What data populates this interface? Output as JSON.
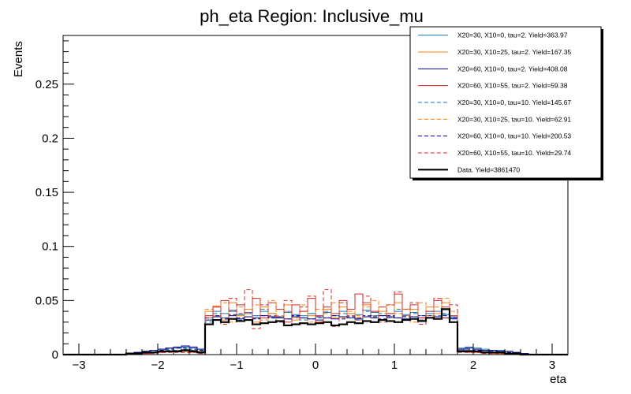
{
  "chart_data": {
    "type": "line",
    "title": "ph_eta Region: Inclusive_mu",
    "xlabel": "eta",
    "ylabel": "Events",
    "xlim": [
      -3.2,
      3.2
    ],
    "ylim": [
      0,
      0.295
    ],
    "x_ticks": [
      -3,
      -2,
      -1,
      0,
      1,
      2,
      3
    ],
    "x_tick_labels": [
      "−3",
      "−2",
      "−1",
      "0",
      "1",
      "2",
      "3"
    ],
    "y_ticks": [
      0,
      0.05,
      0.1,
      0.15,
      0.2,
      0.25
    ],
    "y_tick_labels": [
      "0",
      "0.05",
      "0.1",
      "0.15",
      "0.2",
      "0.25"
    ],
    "grid": false,
    "legend_position": "top-right",
    "bins": {
      "start": -3.2,
      "width": 0.1,
      "count": 64
    },
    "series": [
      {
        "name": "X20=30, X10=0, tau=2. Yield=363.97",
        "color": "#1f77b4",
        "dash": "solid",
        "values": [
          0,
          0,
          0,
          0,
          0,
          0,
          0,
          0,
          0.001,
          0.002,
          0.003,
          0.004,
          0.005,
          0.006,
          0.006,
          0.007,
          0.006,
          0.005,
          0.036,
          0.04,
          0.038,
          0.041,
          0.037,
          0.039,
          0.036,
          0.04,
          0.038,
          0.035,
          0.039,
          0.037,
          0.036,
          0.038,
          0.035,
          0.039,
          0.036,
          0.04,
          0.038,
          0.037,
          0.041,
          0.039,
          0.036,
          0.038,
          0.04,
          0.037,
          0.039,
          0.036,
          0.038,
          0.04,
          0.037,
          0.035,
          0.006,
          0.007,
          0.006,
          0.005,
          0.004,
          0.004,
          0.003,
          0.002,
          0.001,
          0,
          0,
          0,
          0,
          0
        ]
      },
      {
        "name": "X20=30, X10=25, tau=2. Yield=167.35",
        "color": "#ff7f0e",
        "dash": "solid",
        "values": [
          0,
          0,
          0,
          0,
          0,
          0,
          0,
          0,
          0,
          0.001,
          0.002,
          0.002,
          0.003,
          0.003,
          0.004,
          0.004,
          0.004,
          0.003,
          0.04,
          0.045,
          0.032,
          0.048,
          0.036,
          0.042,
          0.03,
          0.044,
          0.038,
          0.034,
          0.046,
          0.032,
          0.04,
          0.036,
          0.03,
          0.042,
          0.034,
          0.044,
          0.038,
          0.032,
          0.046,
          0.036,
          0.04,
          0.034,
          0.048,
          0.036,
          0.042,
          0.032,
          0.044,
          0.038,
          0.048,
          0.03,
          0.004,
          0.004,
          0.003,
          0.003,
          0.002,
          0.002,
          0.001,
          0.001,
          0,
          0,
          0,
          0,
          0,
          0
        ]
      },
      {
        "name": "X20=60, X10=0, tau=2. Yield=408.08",
        "color": "#000080",
        "dash": "solid",
        "values": [
          0,
          0,
          0,
          0,
          0,
          0,
          0,
          0,
          0.001,
          0.002,
          0.003,
          0.004,
          0.005,
          0.006,
          0.007,
          0.008,
          0.007,
          0.005,
          0.032,
          0.035,
          0.034,
          0.036,
          0.033,
          0.035,
          0.034,
          0.036,
          0.035,
          0.034,
          0.033,
          0.035,
          0.034,
          0.033,
          0.032,
          0.034,
          0.033,
          0.035,
          0.034,
          0.033,
          0.035,
          0.034,
          0.036,
          0.035,
          0.034,
          0.033,
          0.035,
          0.034,
          0.036,
          0.035,
          0.034,
          0.033,
          0.005,
          0.006,
          0.005,
          0.004,
          0.004,
          0.003,
          0.003,
          0.002,
          0.001,
          0,
          0,
          0,
          0,
          0
        ]
      },
      {
        "name": "X20=60, X10=55, tau=2. Yield=59.38",
        "color": "#d62728",
        "dash": "solid",
        "values": [
          0,
          0,
          0,
          0,
          0,
          0,
          0,
          0,
          0,
          0.001,
          0.001,
          0.002,
          0.002,
          0.003,
          0.003,
          0.003,
          0.003,
          0.002,
          0.036,
          0.044,
          0.05,
          0.04,
          0.046,
          0.038,
          0.052,
          0.034,
          0.048,
          0.042,
          0.03,
          0.046,
          0.04,
          0.052,
          0.036,
          0.044,
          0.038,
          0.05,
          0.042,
          0.056,
          0.048,
          0.04,
          0.044,
          0.038,
          0.056,
          0.042,
          0.046,
          0.034,
          0.04,
          0.05,
          0.044,
          0.036,
          0.003,
          0.003,
          0.002,
          0.002,
          0.002,
          0.001,
          0.001,
          0,
          0,
          0,
          0,
          0,
          0,
          0
        ]
      },
      {
        "name": "X20=30, X10=0, tau=10. Yield=145.67",
        "color": "#1f77b4",
        "dash": "dashed",
        "values": [
          0,
          0,
          0,
          0,
          0,
          0,
          0,
          0,
          0.001,
          0.001,
          0.002,
          0.003,
          0.003,
          0.004,
          0.004,
          0.005,
          0.004,
          0.003,
          0.03,
          0.038,
          0.034,
          0.04,
          0.032,
          0.038,
          0.036,
          0.042,
          0.034,
          0.03,
          0.04,
          0.036,
          0.032,
          0.038,
          0.034,
          0.04,
          0.036,
          0.038,
          0.034,
          0.032,
          0.04,
          0.036,
          0.038,
          0.034,
          0.042,
          0.036,
          0.038,
          0.032,
          0.04,
          0.036,
          0.038,
          0.034,
          0.004,
          0.004,
          0.003,
          0.003,
          0.002,
          0.002,
          0.001,
          0.001,
          0,
          0,
          0,
          0,
          0,
          0
        ]
      },
      {
        "name": "X20=30, X10=25, tau=10. Yield=62.91",
        "color": "#ff7f0e",
        "dash": "dashed",
        "values": [
          0,
          0,
          0,
          0,
          0,
          0,
          0,
          0,
          0,
          0.001,
          0.001,
          0.002,
          0.002,
          0.002,
          0.003,
          0.003,
          0.002,
          0.002,
          0.042,
          0.036,
          0.048,
          0.03,
          0.044,
          0.038,
          0.046,
          0.032,
          0.05,
          0.036,
          0.04,
          0.034,
          0.046,
          0.03,
          0.042,
          0.038,
          0.048,
          0.034,
          0.04,
          0.036,
          0.044,
          0.05,
          0.032,
          0.046,
          0.038,
          0.042,
          0.03,
          0.048,
          0.036,
          0.044,
          0.052,
          0.04,
          0.003,
          0.002,
          0.002,
          0.002,
          0.001,
          0.001,
          0.001,
          0,
          0,
          0,
          0,
          0,
          0,
          0
        ]
      },
      {
        "name": "X20=60, X10=0, tau=10. Yield=200.53",
        "color": "#000080",
        "dash": "dashed",
        "values": [
          0,
          0,
          0,
          0,
          0,
          0,
          0,
          0,
          0.001,
          0.002,
          0.003,
          0.004,
          0.004,
          0.005,
          0.006,
          0.006,
          0.005,
          0.004,
          0.034,
          0.036,
          0.033,
          0.037,
          0.034,
          0.035,
          0.033,
          0.036,
          0.034,
          0.035,
          0.033,
          0.036,
          0.034,
          0.033,
          0.035,
          0.034,
          0.036,
          0.033,
          0.035,
          0.034,
          0.036,
          0.035,
          0.033,
          0.036,
          0.034,
          0.035,
          0.033,
          0.036,
          0.034,
          0.035,
          0.036,
          0.034,
          0.005,
          0.005,
          0.004,
          0.004,
          0.003,
          0.003,
          0.002,
          0.001,
          0,
          0,
          0,
          0,
          0,
          0
        ]
      },
      {
        "name": "X20=60, X10=55, tau=10. Yield=29.74",
        "color": "#d62728",
        "dash": "dashed",
        "values": [
          0,
          0,
          0,
          0,
          0,
          0,
          0,
          0,
          0,
          0,
          0.001,
          0.001,
          0.002,
          0.002,
          0.002,
          0.002,
          0.002,
          0.001,
          0.034,
          0.044,
          0.028,
          0.052,
          0.038,
          0.06,
          0.024,
          0.046,
          0.036,
          0.03,
          0.05,
          0.028,
          0.044,
          0.054,
          0.03,
          0.06,
          0.026,
          0.048,
          0.036,
          0.034,
          0.054,
          0.04,
          0.03,
          0.046,
          0.058,
          0.032,
          0.048,
          0.028,
          0.04,
          0.052,
          0.034,
          0.046,
          0.002,
          0.002,
          0.002,
          0.001,
          0.001,
          0.001,
          0,
          0,
          0,
          0,
          0,
          0,
          0,
          0
        ]
      },
      {
        "name": "Data. Yield=3861470",
        "color": "#000000",
        "dash": "solid",
        "width": 2.2,
        "values": [
          0,
          0,
          0,
          0,
          0,
          0,
          0,
          0,
          0.001,
          0.001,
          0.002,
          0.002,
          0.003,
          0.003,
          0.003,
          0.004,
          0.003,
          0.002,
          0.028,
          0.032,
          0.03,
          0.033,
          0.031,
          0.032,
          0.028,
          0.029,
          0.03,
          0.031,
          0.027,
          0.028,
          0.029,
          0.028,
          0.029,
          0.03,
          0.027,
          0.028,
          0.03,
          0.029,
          0.031,
          0.03,
          0.032,
          0.031,
          0.03,
          0.032,
          0.033,
          0.031,
          0.034,
          0.033,
          0.042,
          0.03,
          0.003,
          0.003,
          0.003,
          0.002,
          0.002,
          0.002,
          0.001,
          0.001,
          0,
          0,
          0,
          0,
          0,
          0
        ]
      }
    ]
  }
}
